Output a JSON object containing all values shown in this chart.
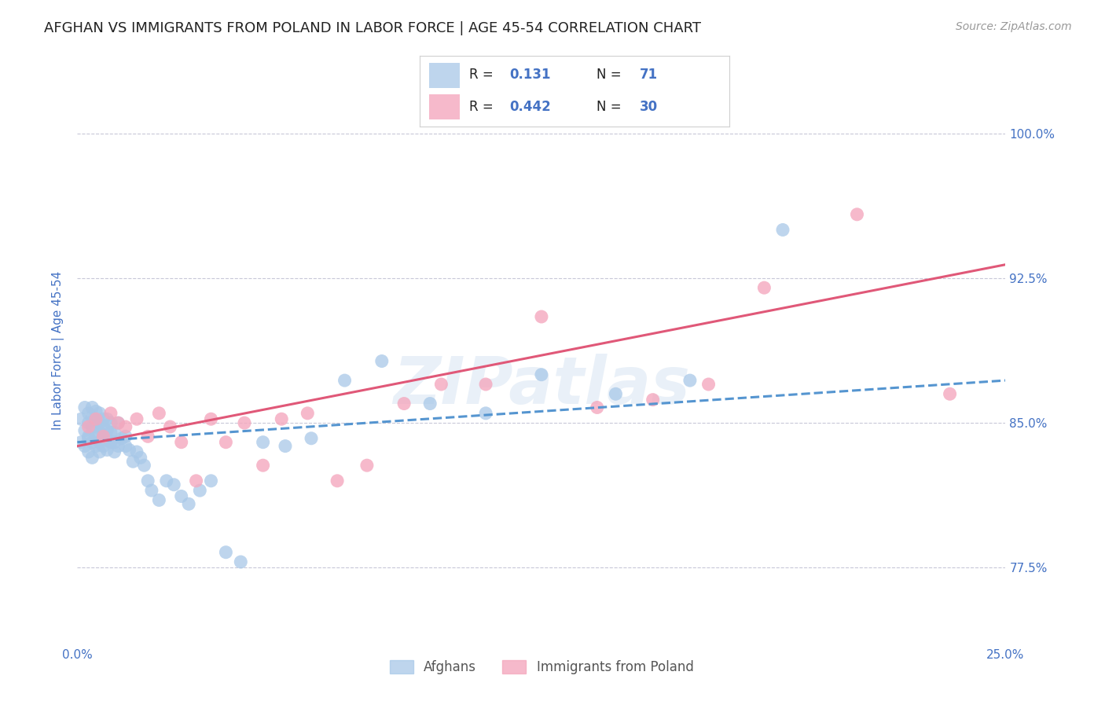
{
  "title": "AFGHAN VS IMMIGRANTS FROM POLAND IN LABOR FORCE | AGE 45-54 CORRELATION CHART",
  "source": "Source: ZipAtlas.com",
  "ylabel": "In Labor Force | Age 45-54",
  "xlim": [
    0.0,
    0.25
  ],
  "ylim": [
    0.735,
    1.04
  ],
  "xticks": [
    0.0,
    0.05,
    0.1,
    0.15,
    0.2,
    0.25
  ],
  "xticklabels": [
    "0.0%",
    "",
    "",
    "",
    "",
    "25.0%"
  ],
  "yticks": [
    0.775,
    0.85,
    0.925,
    1.0
  ],
  "yticklabels": [
    "77.5%",
    "85.0%",
    "92.5%",
    "100.0%"
  ],
  "afghan_color": "#a8c8e8",
  "polish_color": "#f4a8be",
  "afghan_R": 0.131,
  "afghan_N": 71,
  "polish_R": 0.442,
  "polish_N": 30,
  "afghan_line_color": "#5595d0",
  "polish_line_color": "#e05878",
  "watermark": "ZIPatlas",
  "background_color": "#ffffff",
  "grid_color": "#c8c8d8",
  "title_fontsize": 13,
  "axis_label_color": "#4472c4",
  "tick_label_color": "#4472c4",
  "legend_R_color": "#222222",
  "legend_N_color": "#4472c4",
  "afghan_x": [
    0.001,
    0.001,
    0.002,
    0.002,
    0.002,
    0.003,
    0.003,
    0.003,
    0.003,
    0.003,
    0.004,
    0.004,
    0.004,
    0.004,
    0.004,
    0.005,
    0.005,
    0.005,
    0.005,
    0.005,
    0.006,
    0.006,
    0.006,
    0.006,
    0.006,
    0.007,
    0.007,
    0.007,
    0.007,
    0.008,
    0.008,
    0.008,
    0.008,
    0.009,
    0.009,
    0.009,
    0.01,
    0.01,
    0.01,
    0.011,
    0.011,
    0.012,
    0.013,
    0.013,
    0.014,
    0.015,
    0.016,
    0.017,
    0.018,
    0.019,
    0.02,
    0.022,
    0.024,
    0.026,
    0.028,
    0.03,
    0.033,
    0.036,
    0.04,
    0.044,
    0.05,
    0.056,
    0.063,
    0.072,
    0.082,
    0.095,
    0.11,
    0.125,
    0.145,
    0.165,
    0.19
  ],
  "afghan_y": [
    0.84,
    0.852,
    0.838,
    0.846,
    0.858,
    0.835,
    0.843,
    0.85,
    0.855,
    0.842,
    0.832,
    0.84,
    0.848,
    0.853,
    0.858,
    0.838,
    0.843,
    0.848,
    0.852,
    0.856,
    0.835,
    0.84,
    0.845,
    0.85,
    0.855,
    0.838,
    0.843,
    0.848,
    0.852,
    0.836,
    0.841,
    0.846,
    0.852,
    0.84,
    0.845,
    0.85,
    0.835,
    0.84,
    0.845,
    0.838,
    0.85,
    0.842,
    0.838,
    0.843,
    0.836,
    0.83,
    0.835,
    0.832,
    0.828,
    0.82,
    0.815,
    0.81,
    0.82,
    0.818,
    0.812,
    0.808,
    0.815,
    0.82,
    0.783,
    0.778,
    0.84,
    0.838,
    0.842,
    0.872,
    0.882,
    0.86,
    0.855,
    0.875,
    0.865,
    0.872,
    0.95
  ],
  "polish_x": [
    0.003,
    0.005,
    0.007,
    0.009,
    0.011,
    0.013,
    0.016,
    0.019,
    0.022,
    0.025,
    0.028,
    0.032,
    0.036,
    0.04,
    0.045,
    0.05,
    0.055,
    0.062,
    0.07,
    0.078,
    0.088,
    0.098,
    0.11,
    0.125,
    0.14,
    0.155,
    0.17,
    0.185,
    0.21,
    0.235
  ],
  "polish_y": [
    0.848,
    0.852,
    0.843,
    0.855,
    0.85,
    0.848,
    0.852,
    0.843,
    0.855,
    0.848,
    0.84,
    0.82,
    0.852,
    0.84,
    0.85,
    0.828,
    0.852,
    0.855,
    0.82,
    0.828,
    0.86,
    0.87,
    0.87,
    0.905,
    0.858,
    0.862,
    0.87,
    0.92,
    0.958,
    0.865
  ],
  "afghan_line_x0": 0.0,
  "afghan_line_x1": 0.25,
  "afghan_line_y0": 0.84,
  "afghan_line_y1": 0.872,
  "polish_line_x0": 0.0,
  "polish_line_x1": 0.25,
  "polish_line_y0": 0.838,
  "polish_line_y1": 0.932
}
